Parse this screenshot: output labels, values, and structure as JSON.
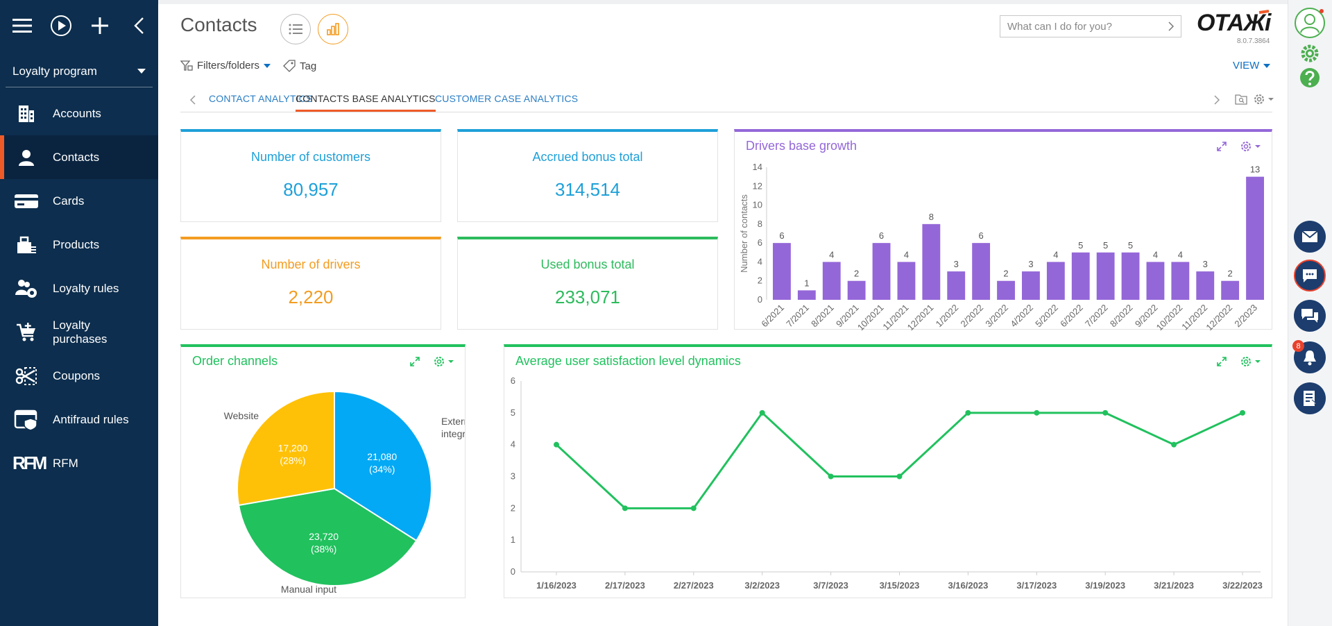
{
  "sidebar": {
    "workspace": "Loyalty program",
    "items": [
      {
        "label": "Accounts",
        "icon": "building-icon"
      },
      {
        "label": "Contacts",
        "icon": "person-icon",
        "active": true
      },
      {
        "label": "Cards",
        "icon": "card-icon"
      },
      {
        "label": "Products",
        "icon": "products-icon"
      },
      {
        "label": "Loyalty rules",
        "icon": "users-gear-icon"
      },
      {
        "label_line1": "Loyalty",
        "label_line2": "purchases",
        "icon": "cart-icon"
      },
      {
        "label": "Coupons",
        "icon": "coupon-icon"
      },
      {
        "label": "Antifraud rules",
        "icon": "shield-window-icon"
      },
      {
        "label": "RFM",
        "icon": "rfm-icon"
      }
    ]
  },
  "header": {
    "title": "Contacts",
    "search_placeholder": "What can I do for you?",
    "logo": "ОТАЖі",
    "version": "8.0.7.3864",
    "filters_label": "Filters/folders",
    "tag_label": "Tag",
    "view_label": "VIEW"
  },
  "tabs": [
    {
      "label": "CONTACT ANALYTICS"
    },
    {
      "label": "CONTACTS BASE ANALYTICS",
      "active": true
    },
    {
      "label": "CUSTOMER CASE ANALYTICS"
    }
  ],
  "metrics": [
    {
      "label": "Number of customers",
      "value": "80,957",
      "color": "#1ea0d8"
    },
    {
      "label": "Accrued bonus total",
      "value": "314,514",
      "color": "#1ea0d8"
    },
    {
      "label": "Number of drivers",
      "value": "2,220",
      "color": "#f39c21"
    },
    {
      "label": "Used bonus total",
      "value": "233,071",
      "color": "#2dbb5d"
    }
  ],
  "colors": {
    "purple": "#9467d8",
    "green": "#21c15e",
    "blue": "#03a9f4",
    "orange": "#f39c21",
    "yellow": "#ffc107",
    "sidebar": "#0d2e4e",
    "accent": "#ef5a29"
  },
  "rightbar": {
    "notification_count": "8",
    "icons": [
      "avatar-icon",
      "settings-gear-icon",
      "help-icon",
      "email-icon",
      "chat-icon",
      "conversations-icon",
      "bell-icon",
      "feed-icon"
    ]
  },
  "chart_data": [
    {
      "type": "bar",
      "title": "Drivers base growth",
      "ylabel": "Number of contacts",
      "xlabel": "",
      "ylim": [
        0,
        14
      ],
      "yticks": [
        0,
        2,
        4,
        6,
        8,
        10,
        12,
        14
      ],
      "categories": [
        "6/2021",
        "7/2021",
        "8/2021",
        "9/2021",
        "10/2021",
        "11/2021",
        "12/2021",
        "1/2022",
        "2/2022",
        "3/2022",
        "4/2022",
        "5/2022",
        "6/2022",
        "7/2022",
        "8/2022",
        "9/2022",
        "10/2022",
        "11/2022",
        "12/2022",
        "2/2023"
      ],
      "values": [
        6,
        1,
        4,
        2,
        6,
        4,
        8,
        3,
        6,
        2,
        3,
        4,
        5,
        5,
        5,
        4,
        4,
        3,
        2,
        13
      ],
      "grid": false
    },
    {
      "type": "pie",
      "title": "Order channels",
      "slices": [
        {
          "label": "External integration",
          "value": 21080,
          "value_text": "21,080",
          "pct_text": "(34%)",
          "color": "#03a9f4"
        },
        {
          "label": "Manual input",
          "value": 23720,
          "value_text": "23,720",
          "pct_text": "(38%)",
          "color": "#21c15e"
        },
        {
          "label": "Website",
          "value": 17200,
          "value_text": "17,200",
          "pct_text": "(28%)",
          "color": "#ffc107"
        }
      ]
    },
    {
      "type": "line",
      "title": "Average user satisfaction level dynamics",
      "ylim": [
        0,
        6
      ],
      "yticks": [
        0,
        1,
        2,
        3,
        4,
        5,
        6
      ],
      "x": [
        "1/16/2023",
        "2/17/2023",
        "2/27/2023",
        "3/2/2023",
        "3/7/2023",
        "3/15/2023",
        "3/16/2023",
        "3/17/2023",
        "3/19/2023",
        "3/21/2023",
        "3/22/2023"
      ],
      "series": [
        {
          "values": [
            4,
            2,
            2,
            5,
            3,
            3,
            5,
            5,
            5,
            4,
            5
          ]
        }
      ],
      "grid": false
    }
  ]
}
